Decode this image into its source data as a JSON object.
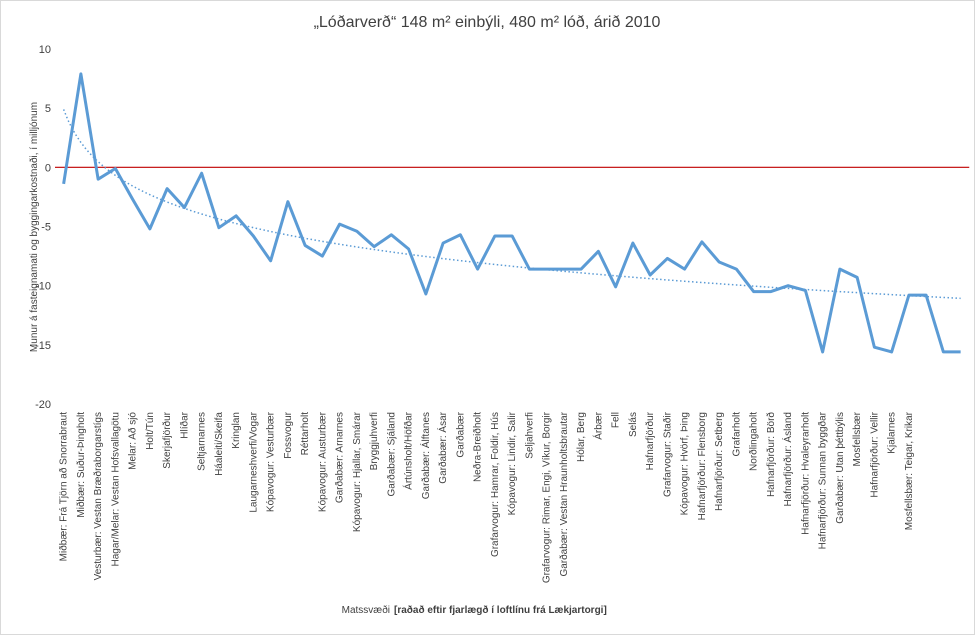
{
  "chart_data": {
    "type": "line",
    "title": "„Lóðarverð“ 148 m² einbýli, 480 m² lóð, árið 2010",
    "y_label": "Munur á fasteignamati og byggingarkostnaði, í milljónum",
    "x_label": "Matssvæði",
    "x_label_note": "[raðað eftir fjarlægð í loftlínu frá Lækjartorgi]",
    "categories": [
      "Miðbær: Frá Tjörn að Snorrabraut",
      "Miðbær: Suður-Þingholt",
      "Vesturbær: Vestan Bræðraborgarstígs",
      "Hagar/Melar: Vestan Hofsvallagötu",
      "Melar: Að sjó",
      "Holt/Tún",
      "Skerjafjörður",
      "Hlíðar",
      "Seltjarnarnes",
      "Háaleiti/Skeifa",
      "Kringlan",
      "Laugarneshverfi/Vogar",
      "Kópavogur: Vesturbær",
      "Fossvogur",
      "Réttarholt",
      "Kópavogur: Austurbær",
      "Garðabær: Arnarnes",
      "Kópavogur: Hjallar, Smárar",
      "Bryggjuhverfi",
      "Garðabær: Sjáland",
      "Ártúnsholt/Höfðar",
      "Garðabær: Álftanes",
      "Garðabær: Ásar",
      "Garðabær",
      "Neðra-Breiðholt",
      "Grafarvogur: Hamrar, Foldir, Hús",
      "Kópavogur: Lindir, Salir",
      "Seljahverfi",
      "Grafarvogur: Rimar, Engi, Víkur, Borgir",
      "Garðabær: Vestan Hraunholtsbrautar",
      "Hólar, Berg",
      "Árbær",
      "Fell",
      "Selás",
      "Hafnarfjörður",
      "Grafarvogur: Staðir",
      "Kópavogur: Hvörf, Þing",
      "Hafnarfjörður: Flensborg",
      "Hafnarfjörður: Setberg",
      "Grafarholt",
      "Norðlingaholt",
      "Hafnarfjörður: Börð",
      "Hafnarfjörður: Ásland",
      "Hafnarfjörður: Hvaleyrarholt",
      "Hafnarfjörður: Sunnan byggðar",
      "Garðabær: Utan þéttbýlis",
      "Mosfellsbær",
      "Hafnarfjörður: Vellir",
      "Kjalarnes",
      "Mosfellsbær: Teigar, Krikar",
      null,
      null,
      null
    ],
    "values": [
      -1.4,
      7.9,
      -1.0,
      -0.1,
      -2.7,
      -5.2,
      -1.8,
      -3.4,
      -0.5,
      -5.1,
      -4.1,
      -5.8,
      -7.9,
      -2.9,
      -6.6,
      -7.5,
      -4.8,
      -5.4,
      -6.7,
      -5.7,
      -6.9,
      -10.7,
      -6.4,
      -5.7,
      -8.6,
      -5.8,
      -5.8,
      -8.6,
      -8.6,
      -8.6,
      -8.6,
      -7.1,
      -10.1,
      -6.4,
      -9.1,
      -7.7,
      -8.6,
      -6.3,
      -8.0,
      -8.6,
      -10.5,
      -10.5,
      -10.0,
      -10.4,
      -15.6,
      -8.6,
      -9.3,
      -15.2,
      -15.6,
      -10.8,
      -10.8,
      -15.6,
      -15.6
    ],
    "color": "#5b9bd5",
    "trendline": "logarithmic",
    "zero_line_color": "#c00000",
    "ylim": [
      -20,
      10
    ],
    "yticks": [
      -20,
      -15,
      -10,
      -5,
      0,
      5,
      10
    ],
    "grid": false
  }
}
